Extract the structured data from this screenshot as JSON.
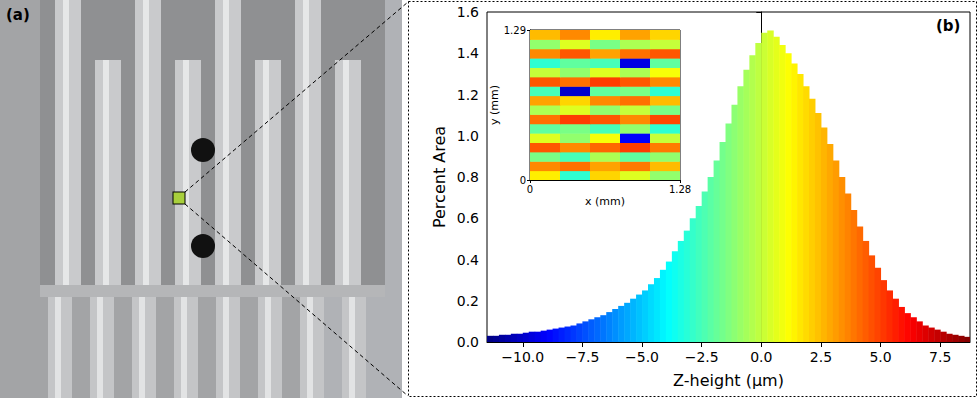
{
  "panel_labels": [
    "(a)",
    "(b)"
  ],
  "chart_data": {
    "type": "histogram",
    "xlabel": "Z-height (μm)",
    "ylabel": "Percent Area",
    "color": "jet",
    "grid": false,
    "xlim": [
      -11.5,
      8.75
    ],
    "ylim": [
      0,
      1.6
    ],
    "xticks": [
      {
        "value": -10,
        "label": "−10.0"
      },
      {
        "value": -7.5,
        "label": "−7.5"
      },
      {
        "value": -5,
        "label": "−5.0"
      },
      {
        "value": -2.5,
        "label": "−2.5"
      },
      {
        "value": 0,
        "label": "0.0"
      },
      {
        "value": 2.5,
        "label": "2.5"
      },
      {
        "value": 5,
        "label": "5.0"
      },
      {
        "value": 7.5,
        "label": "7.5"
      }
    ],
    "yticks": [
      {
        "value": 0,
        "label": "0.0"
      },
      {
        "value": 0.2,
        "label": "0.2"
      },
      {
        "value": 0.4,
        "label": "0.4"
      },
      {
        "value": 0.6,
        "label": "0.6"
      },
      {
        "value": 0.8,
        "label": "0.8"
      },
      {
        "value": 1,
        "label": "1.0"
      },
      {
        "value": 1.2,
        "label": "1.2"
      },
      {
        "value": 1.4,
        "label": "1.4"
      },
      {
        "value": 1.6,
        "label": "1.6"
      }
    ],
    "bins": [
      -11.5,
      -11.25,
      -11.0,
      -10.75,
      -10.5,
      -10.25,
      -10.0,
      -9.75,
      -9.5,
      -9.25,
      -9.0,
      -8.75,
      -8.5,
      -8.25,
      -8.0,
      -7.75,
      -7.5,
      -7.25,
      -7.0,
      -6.75,
      -6.5,
      -6.25,
      -6.0,
      -5.75,
      -5.5,
      -5.25,
      -5.0,
      -4.75,
      -4.5,
      -4.25,
      -4.0,
      -3.75,
      -3.5,
      -3.25,
      -3.0,
      -2.75,
      -2.5,
      -2.25,
      -2.0,
      -1.75,
      -1.5,
      -1.25,
      -1.0,
      -0.75,
      -0.5,
      -0.25,
      0.0,
      0.25,
      0.5,
      0.75,
      1.0,
      1.25,
      1.5,
      1.75,
      2.0,
      2.25,
      2.5,
      2.75,
      3.0,
      3.25,
      3.5,
      3.75,
      4.0,
      4.25,
      4.5,
      4.75,
      5.0,
      5.25,
      5.5,
      5.75,
      6.0,
      6.25,
      6.5,
      6.75,
      7.0,
      7.25,
      7.5,
      7.75,
      8.0,
      8.25,
      8.5,
      8.75
    ],
    "counts": [
      0.03,
      0.03,
      0.035,
      0.035,
      0.04,
      0.04,
      0.045,
      0.05,
      0.05,
      0.055,
      0.06,
      0.065,
      0.07,
      0.075,
      0.08,
      0.09,
      0.1,
      0.11,
      0.12,
      0.13,
      0.145,
      0.16,
      0.175,
      0.19,
      0.21,
      0.23,
      0.25,
      0.28,
      0.31,
      0.35,
      0.39,
      0.44,
      0.49,
      0.54,
      0.6,
      0.66,
      0.73,
      0.8,
      0.88,
      0.97,
      1.06,
      1.15,
      1.24,
      1.32,
      1.39,
      1.45,
      1.5,
      1.51,
      1.48,
      1.44,
      1.4,
      1.35,
      1.3,
      1.24,
      1.18,
      1.11,
      1.04,
      0.96,
      0.88,
      0.8,
      0.72,
      0.64,
      0.56,
      0.49,
      0.42,
      0.36,
      0.3,
      0.25,
      0.21,
      0.17,
      0.14,
      0.12,
      0.1,
      0.08,
      0.07,
      0.06,
      0.05,
      0.04,
      0.035,
      0.03,
      0.025
    ],
    "inset": {
      "type": "heatmap",
      "xlabel": "x (mm)",
      "ylabel": "y (mm)",
      "xlim": [
        0,
        1.28
      ],
      "ylim": [
        0,
        1.29
      ],
      "xticks": [
        0,
        1.28
      ],
      "yticks": [
        0,
        1.29
      ],
      "cells": [
        [
          1.5,
          -3.0,
          2.0,
          0.5,
          -1.0
        ],
        [
          3.5,
          4.0,
          3.0,
          3.8,
          2.5
        ],
        [
          -1.5,
          -2.5,
          -0.5,
          -2.0,
          -1.0
        ],
        [
          4.5,
          3.5,
          4.2,
          5.0,
          3.8
        ],
        [
          0.5,
          -1.0,
          1.0,
          -9.0,
          0.0
        ],
        [
          -2.0,
          -1.5,
          -2.5,
          -1.0,
          -3.0
        ],
        [
          4.0,
          5.0,
          4.5,
          3.5,
          4.8
        ],
        [
          -0.5,
          0.5,
          -1.0,
          0.0,
          -1.5
        ],
        [
          3.0,
          2.0,
          3.5,
          4.0,
          2.5
        ],
        [
          -2.5,
          -10.0,
          -2.0,
          -1.5,
          -3.0
        ],
        [
          4.5,
          4.0,
          5.0,
          4.5,
          3.5
        ],
        [
          0.0,
          -1.0,
          0.5,
          -0.5,
          1.0
        ],
        [
          -3.0,
          -2.0,
          -2.5,
          -9.5,
          -2.0
        ],
        [
          3.5,
          4.5,
          3.0,
          4.0,
          4.5
        ],
        [
          -1.0,
          0.5,
          -1.5,
          -0.5,
          0.0
        ],
        [
          2.5,
          3.5,
          1.5,
          3.0,
          2.0
        ]
      ]
    }
  }
}
